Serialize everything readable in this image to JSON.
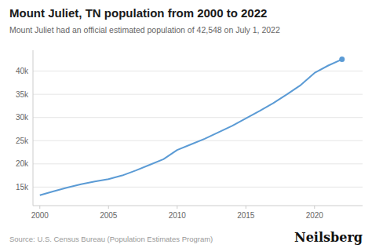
{
  "chart_data": {
    "type": "line",
    "title": "Mount Juliet, TN population from 2000 to 2022",
    "subtitle": "Mount Juliet had an official estimated population of 42,548 on July 1, 2022",
    "annotations": [
      "Source: U.S. Census Bureau (Population Estimates Program)",
      "Neilsberg"
    ],
    "x": [
      2000,
      2001,
      2002,
      2003,
      2004,
      2005,
      2006,
      2007,
      2008,
      2009,
      2010,
      2011,
      2012,
      2013,
      2014,
      2015,
      2016,
      2017,
      2018,
      2019,
      2020,
      2021,
      2022
    ],
    "values": [
      13245,
      14100,
      14900,
      15600,
      16200,
      16700,
      17500,
      18600,
      19800,
      21000,
      23000,
      24200,
      25400,
      26800,
      28200,
      29800,
      31400,
      33100,
      35000,
      37000,
      39600,
      41200,
      42548
    ],
    "color": "#5b9bd5",
    "xlim": [
      1999.5,
      2023.5
    ],
    "ylim": [
      11000,
      44500
    ],
    "xticks": [
      2000,
      2005,
      2010,
      2015,
      2020
    ],
    "yticks": [
      {
        "value": 15000,
        "label": "15k"
      },
      {
        "value": 20000,
        "label": "20k"
      },
      {
        "value": 25000,
        "label": "25k"
      },
      {
        "value": 30000,
        "label": "30k"
      },
      {
        "value": 35000,
        "label": "35k"
      },
      {
        "value": 40000,
        "label": "40k"
      }
    ],
    "grid": true
  }
}
